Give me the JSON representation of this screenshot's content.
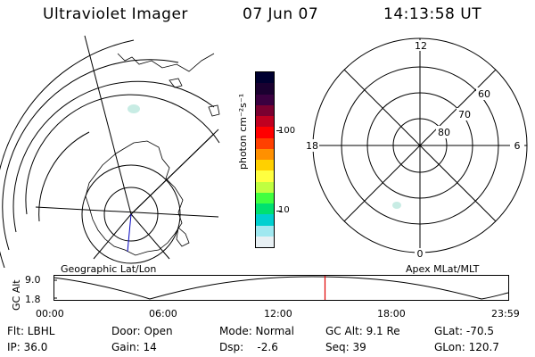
{
  "header": {
    "title": "Ultraviolet Imager",
    "date": "07 Jun 07",
    "time": "14:13:58 UT"
  },
  "left_panel": {
    "label": "Geographic Lat/Lon"
  },
  "right_panel": {
    "label": "Apex MLat/MLT",
    "mlt_labels": {
      "top": "12",
      "left": "18",
      "right": "6",
      "bottom": "0"
    },
    "lat_labels": [
      "60",
      "70",
      "80"
    ]
  },
  "colorbar": {
    "unit": "photon cm⁻²s⁻¹",
    "ticks": [
      "100",
      "10"
    ],
    "colors": [
      "#000030",
      "#1a0030",
      "#3a0040",
      "#7a0030",
      "#c00020",
      "#ff0000",
      "#ff4000",
      "#ff9000",
      "#ffd000",
      "#ffff40",
      "#c0ff40",
      "#40ff40",
      "#00e070",
      "#00d0d0",
      "#a0e8f0",
      "#e8f0f4"
    ]
  },
  "timeline": {
    "axis_label": "GC Alt",
    "y_ticks": [
      "9.0",
      "1.8"
    ],
    "x_ticks": [
      "00:00",
      "06:00",
      "12:00",
      "18:00",
      "23:59"
    ],
    "current_time_fraction": 0.596
  },
  "info": {
    "row1": [
      {
        "label": "Flt: LBHL"
      },
      {
        "label": "Door: Open"
      },
      {
        "label": "Mode: Normal"
      },
      {
        "label": "GC Alt: 9.1 Re"
      },
      {
        "label": "GLat: -70.5"
      }
    ],
    "row2": [
      {
        "label": "IP: 36.0"
      },
      {
        "label": "Gain: 14"
      },
      {
        "label": "Dsp:    -2.6"
      },
      {
        "label": "Seq: 39"
      },
      {
        "label": "GLon: 120.7"
      }
    ]
  }
}
